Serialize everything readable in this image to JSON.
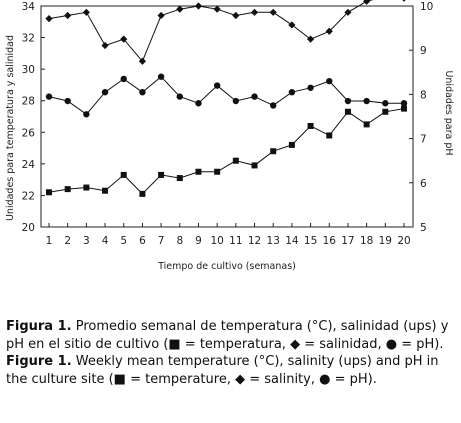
{
  "chart_data": {
    "type": "line",
    "x": [
      1,
      2,
      3,
      4,
      5,
      6,
      7,
      8,
      9,
      10,
      11,
      12,
      13,
      14,
      15,
      16,
      17,
      18,
      19,
      20
    ],
    "xlabel": "Tiempo de cultivo (semanas)",
    "ylabel_left": "Unidades para temperatura y salinidad",
    "ylabel_right": "Unidades para pH",
    "ylim_left": [
      20,
      34
    ],
    "ylim_right": [
      5,
      10
    ],
    "yticks_left": [
      20,
      22,
      24,
      26,
      28,
      30,
      32,
      34
    ],
    "yticks_right": [
      5,
      6,
      7,
      8,
      9,
      10
    ],
    "grid": false,
    "series": [
      {
        "name": "",
        "marker": "diamond",
        "axis": "left",
        "values": [
          33.2,
          33.4,
          33.6,
          31.5,
          31.9,
          30.5,
          33.4,
          33.8,
          34.0,
          33.8,
          33.4,
          33.6,
          33.6,
          32.8,
          31.9,
          32.4,
          33.6,
          34.3,
          34.6,
          34.5
        ]
      },
      {
        "name": "",
        "marker": "circle",
        "axis": "right",
        "values": [
          7.95,
          7.85,
          7.55,
          8.05,
          8.35,
          8.05,
          8.4,
          7.95,
          7.8,
          8.2,
          7.85,
          7.95,
          7.75,
          8.05,
          8.15,
          8.3,
          7.85,
          7.85,
          7.8,
          7.8
        ]
      },
      {
        "name": "",
        "marker": "square",
        "axis": "left",
        "values": [
          22.2,
          22.4,
          22.5,
          22.3,
          23.3,
          22.1,
          23.3,
          23.1,
          23.5,
          23.5,
          24.2,
          23.9,
          24.8,
          25.2,
          26.4,
          25.8,
          27.3,
          26.5,
          27.3,
          27.5
        ]
      }
    ]
  },
  "caption": {
    "es_lead": "Figura 1.",
    "es_text": " Promedio semanal de temperatura (°C), salinidad (ups) y pH en el sitio de cultivo (■ = temperatura, ◆ = salinidad, ● = pH).",
    "en_lead": "Figure 1.",
    "en_text": " Weekly mean temperature (°C), salinity (ups) and pH in the culture site (■ = temperature, ◆ = salinity, ● = pH)."
  }
}
